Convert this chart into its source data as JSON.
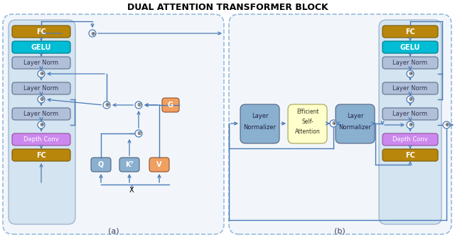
{
  "title": "DUAL ATTENTION TRANSFORMER BLOCK",
  "title_fontsize": 9,
  "bg_color": "#ffffff",
  "colors": {
    "fc": "#b8860b",
    "gelu": "#00bcd4",
    "layer_norm": "#b0c0d8",
    "depth_conv": "#cc88ee",
    "G": "#f0a060",
    "V": "#f0a060",
    "Q": "#8ab0d0",
    "KT": "#8ab0d0",
    "layer_norm_b": "#8ab0d0",
    "efficient_sa": "#ffffcc",
    "inner_stack": "#d8e8f4"
  },
  "arrow_color": "#4a7ab8",
  "label_a": "(a)",
  "label_b": "(b)"
}
